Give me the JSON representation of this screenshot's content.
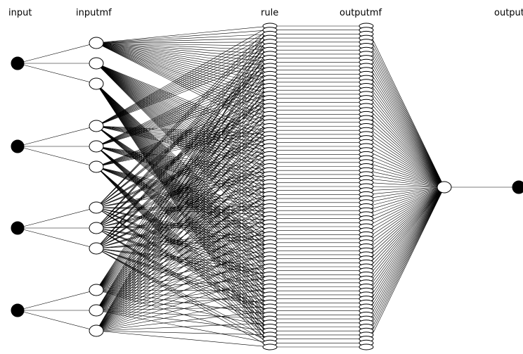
{
  "layers": {
    "input": "input",
    "inputmf": "inputmf",
    "rule": "rule",
    "outputmf": "outputmf",
    "output": "output"
  },
  "network": {
    "inputs": 4,
    "mfs_per_input": 3,
    "rules": 81,
    "outputmfs": 81,
    "outputs": 1
  },
  "colors": {
    "line": "#000000",
    "filled_node": "#000000",
    "open_node": "#ffffff"
  }
}
